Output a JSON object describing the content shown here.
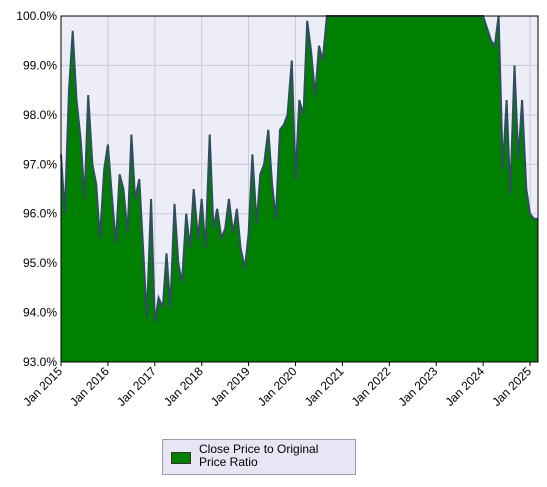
{
  "chart_data": {
    "type": "area",
    "title": "",
    "xlabel": "",
    "ylabel": "",
    "ylim": [
      93.0,
      100.0
    ],
    "yticks": [
      "93.0%",
      "94.0%",
      "95.0%",
      "96.0%",
      "97.0%",
      "98.0%",
      "99.0%",
      "100.0%"
    ],
    "xticks": [
      "Jan 2015",
      "Jan 2016",
      "Jan 2017",
      "Jan 2018",
      "Jan 2019",
      "Jan 2020",
      "Jan 2021",
      "Jan 2022",
      "Jan 2023",
      "Jan 2024",
      "Jan 2025"
    ],
    "grid": true,
    "legend_position": "bottom",
    "colors": {
      "fill": "#008000",
      "line": "#2f4f5f",
      "plot_bg": "#ededf8"
    },
    "series": [
      {
        "name": "Close Price to Original Price Ratio",
        "x": [
          2015.0,
          2015.08,
          2015.17,
          2015.25,
          2015.33,
          2015.42,
          2015.5,
          2015.58,
          2015.67,
          2015.75,
          2015.83,
          2015.92,
          2016.0,
          2016.08,
          2016.17,
          2016.25,
          2016.33,
          2016.42,
          2016.5,
          2016.58,
          2016.67,
          2016.75,
          2016.83,
          2016.92,
          2017.0,
          2017.08,
          2017.17,
          2017.25,
          2017.33,
          2017.42,
          2017.5,
          2017.58,
          2017.67,
          2017.75,
          2017.83,
          2017.92,
          2018.0,
          2018.08,
          2018.17,
          2018.25,
          2018.33,
          2018.42,
          2018.5,
          2018.58,
          2018.67,
          2018.75,
          2018.83,
          2018.92,
          2019.0,
          2019.08,
          2019.17,
          2019.25,
          2019.33,
          2019.42,
          2019.5,
          2019.58,
          2019.67,
          2019.75,
          2019.83,
          2019.92,
          2020.0,
          2020.08,
          2020.17,
          2020.25,
          2020.33,
          2020.42,
          2020.5,
          2020.58,
          2020.67,
          2020.75,
          2020.83,
          2020.92,
          2021.0,
          2021.08,
          2021.25,
          2021.5,
          2021.75,
          2022.0,
          2022.5,
          2023.0,
          2023.5,
          2024.0,
          2024.17,
          2024.25,
          2024.33,
          2024.42,
          2024.5,
          2024.58,
          2024.67,
          2024.75,
          2024.83,
          2024.92,
          2025.0,
          2025.08,
          2025.17
        ],
        "values": [
          97.2,
          96.0,
          98.5,
          99.7,
          98.3,
          97.5,
          96.3,
          98.4,
          97.0,
          96.6,
          95.5,
          96.9,
          97.4,
          96.4,
          95.4,
          96.8,
          96.5,
          95.6,
          97.6,
          96.3,
          96.7,
          95.3,
          93.9,
          96.3,
          93.8,
          94.3,
          94.1,
          95.2,
          94.1,
          96.2,
          95.0,
          94.6,
          96.0,
          95.3,
          96.5,
          95.5,
          96.3,
          95.3,
          97.6,
          95.7,
          96.1,
          95.5,
          95.7,
          96.3,
          95.6,
          96.1,
          95.3,
          94.9,
          95.6,
          97.2,
          95.8,
          96.8,
          97.0,
          97.7,
          96.6,
          95.9,
          97.7,
          97.8,
          98.0,
          99.1,
          96.7,
          98.3,
          98.0,
          99.9,
          99.3,
          98.4,
          99.4,
          99.1,
          100.0,
          100.0,
          100.0,
          100.0,
          100.0,
          100.0,
          100.0,
          100.0,
          100.0,
          100.0,
          100.0,
          100.0,
          100.0,
          100.0,
          99.5,
          99.4,
          100.0,
          96.9,
          98.3,
          96.4,
          99.0,
          97.1,
          98.3,
          96.5,
          96.0,
          95.9,
          95.9
        ]
      }
    ]
  }
}
